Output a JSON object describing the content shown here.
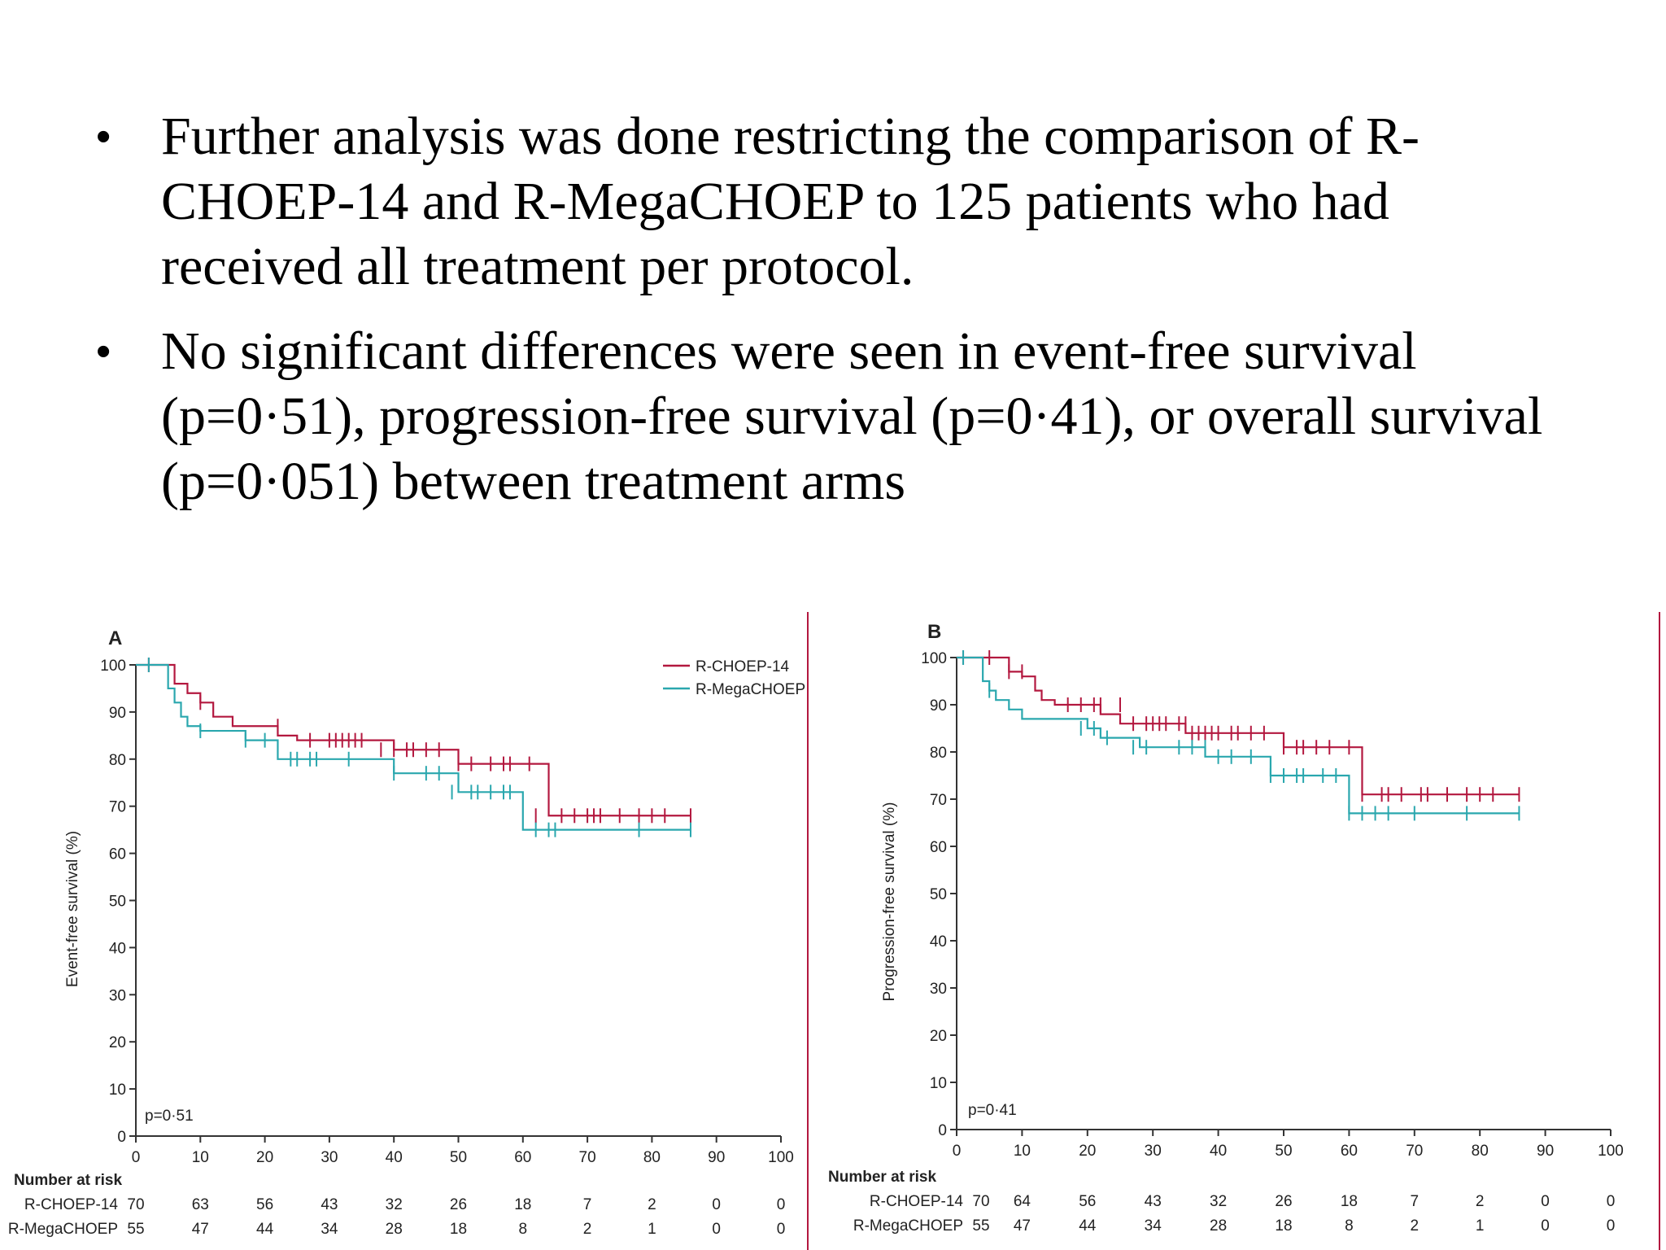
{
  "bullets": [
    "Further analysis was done restricting the comparison of R-CHOEP-14 and R-MegaCHOEP to 125 patients who had received all treatment per protocol.",
    "No significant differences were seen in event-free survival (p=0·51), progression-free survival (p=0·41), or overall survival (p=0·051) between treatment arms"
  ],
  "colors": {
    "rchoep": "#b3183f",
    "rmega": "#2aa7ae",
    "divider": "#b3183f"
  },
  "chart_data": [
    {
      "type": "line",
      "panel_label": "A",
      "ylabel": "Event-free survival (%)",
      "xticks": [
        0,
        10,
        20,
        30,
        40,
        50,
        60,
        70,
        80,
        90,
        100
      ],
      "yticks": [
        0,
        10,
        20,
        30,
        40,
        50,
        60,
        70,
        80,
        90,
        100
      ],
      "xlim": [
        0,
        100
      ],
      "ylim": [
        0,
        100
      ],
      "p_value": "p=0·51",
      "legend_position": "top-right",
      "series": [
        {
          "name": "R-CHOEP-14",
          "color_key": "rchoep",
          "x": [
            0,
            5,
            6,
            8,
            10,
            12,
            15,
            20,
            22,
            25,
            40,
            50,
            62,
            64,
            86
          ],
          "y": [
            100,
            100,
            96,
            94,
            92,
            89,
            87,
            87,
            85,
            84,
            82,
            79,
            79,
            68,
            68
          ],
          "censor_x": [
            2,
            10,
            22,
            27,
            30,
            31,
            32,
            33,
            34,
            35,
            38,
            40,
            42,
            43,
            45,
            47,
            50,
            52,
            55,
            57,
            58,
            61,
            62,
            66,
            68,
            70,
            71,
            72,
            75,
            78,
            80,
            82,
            86
          ],
          "censor_y": [
            100,
            92,
            87,
            84,
            84,
            84,
            84,
            84,
            84,
            84,
            82,
            82,
            82,
            82,
            82,
            82,
            79,
            79,
            79,
            79,
            79,
            79,
            68,
            68,
            68,
            68,
            68,
            68,
            68,
            68,
            68,
            68,
            68
          ]
        },
        {
          "name": "R-MegaCHOEP",
          "color_key": "rmega",
          "x": [
            0,
            4,
            5,
            6,
            7,
            8,
            10,
            17,
            22,
            40,
            50,
            58,
            60,
            86
          ],
          "y": [
            100,
            100,
            95,
            92,
            89,
            87,
            86,
            84,
            80,
            77,
            73,
            73,
            65,
            65
          ],
          "censor_x": [
            2,
            10,
            17,
            20,
            24,
            25,
            27,
            28,
            33,
            40,
            45,
            47,
            49,
            52,
            53,
            55,
            57,
            58,
            62,
            64,
            65,
            78,
            86
          ],
          "censor_y": [
            100,
            86,
            84,
            84,
            80,
            80,
            80,
            80,
            80,
            77,
            77,
            77,
            73,
            73,
            73,
            73,
            73,
            73,
            65,
            65,
            65,
            65,
            65
          ]
        }
      ],
      "risk_table": {
        "title": "Number at risk",
        "rows": [
          {
            "name": "R-CHOEP-14",
            "values": [
              "70",
              "63",
              "56",
              "43",
              "32",
              "26",
              "18",
              "7",
              "2",
              "0",
              "0"
            ]
          },
          {
            "name": "R-MegaCHOEP",
            "values": [
              "55",
              "47",
              "44",
              "34",
              "28",
              "18",
              "8",
              "2",
              "1",
              "0",
              "0"
            ]
          }
        ]
      }
    },
    {
      "type": "line",
      "panel_label": "B",
      "ylabel": "Progression-free survival (%)",
      "xticks": [
        0,
        10,
        20,
        30,
        40,
        50,
        60,
        70,
        80,
        90,
        100
      ],
      "yticks": [
        0,
        10,
        20,
        30,
        40,
        50,
        60,
        70,
        80,
        90,
        100
      ],
      "xlim": [
        0,
        100
      ],
      "ylim": [
        0,
        100
      ],
      "p_value": "p=0·41",
      "series": [
        {
          "name": "R-CHOEP-14",
          "color_key": "rchoep",
          "x": [
            0,
            5,
            8,
            10,
            12,
            13,
            15,
            20,
            22,
            25,
            35,
            45,
            50,
            61,
            62,
            86
          ],
          "y": [
            100,
            100,
            97,
            96,
            93,
            91,
            90,
            90,
            88,
            86,
            84,
            84,
            81,
            81,
            71,
            71
          ],
          "censor_x": [
            1,
            5,
            8,
            10,
            17,
            19,
            21,
            22,
            25,
            27,
            29,
            30,
            31,
            32,
            34,
            35,
            36,
            37,
            38,
            39,
            40,
            42,
            43,
            45,
            47,
            50,
            52,
            53,
            55,
            57,
            60,
            62,
            65,
            66,
            68,
            71,
            72,
            75,
            78,
            80,
            82,
            86
          ],
          "censor_y": [
            100,
            100,
            97,
            97,
            90,
            90,
            90,
            90,
            90,
            86,
            86,
            86,
            86,
            86,
            86,
            86,
            84,
            84,
            84,
            84,
            84,
            84,
            84,
            84,
            84,
            81,
            81,
            81,
            81,
            81,
            81,
            71,
            71,
            71,
            71,
            71,
            71,
            71,
            71,
            71,
            71,
            71
          ]
        },
        {
          "name": "R-MegaCHOEP",
          "color_key": "rmega",
          "x": [
            0,
            3,
            4,
            5,
            6,
            8,
            10,
            15,
            20,
            22,
            28,
            38,
            48,
            60,
            86
          ],
          "y": [
            100,
            100,
            95,
            93,
            91,
            89,
            87,
            87,
            85,
            83,
            81,
            79,
            75,
            67,
            67
          ],
          "censor_x": [
            1,
            5,
            19,
            21,
            23,
            27,
            29,
            34,
            36,
            38,
            40,
            42,
            45,
            48,
            50,
            52,
            53,
            56,
            58,
            60,
            62,
            64,
            66,
            70,
            78,
            86
          ],
          "censor_y": [
            100,
            93,
            85,
            85,
            83,
            81,
            81,
            81,
            81,
            81,
            79,
            79,
            79,
            75,
            75,
            75,
            75,
            75,
            75,
            67,
            67,
            67,
            67,
            67,
            67,
            67
          ]
        }
      ],
      "risk_table": {
        "title": "Number at risk",
        "rows": [
          {
            "name": "R-CHOEP-14",
            "values": [
              "70",
              "64",
              "56",
              "43",
              "32",
              "26",
              "18",
              "7",
              "2",
              "0",
              "0"
            ]
          },
          {
            "name": "R-MegaCHOEP",
            "values": [
              "55",
              "47",
              "44",
              "34",
              "28",
              "18",
              "8",
              "2",
              "1",
              "0",
              "0"
            ]
          }
        ]
      }
    }
  ]
}
